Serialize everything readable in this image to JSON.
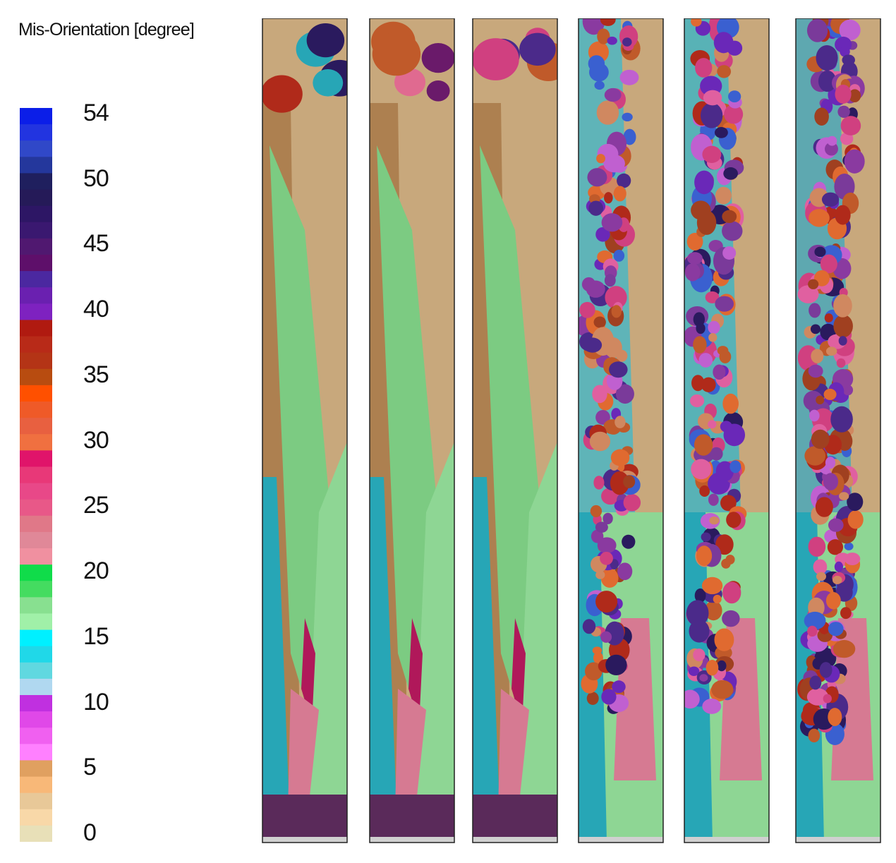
{
  "legend": {
    "title": "Mis-Orientation [degree]",
    "ticks": [
      "54",
      "50",
      "45",
      "40",
      "35",
      "30",
      "25",
      "20",
      "15",
      "10",
      "5",
      "0"
    ],
    "colors": [
      "#0b1ee8",
      "#2234e0",
      "#3048c8",
      "#24379c",
      "#1f1f5e",
      "#251a58",
      "#2d1665",
      "#3a1870",
      "#501870",
      "#5e0f6a",
      "#4b28a0",
      "#6a20b0",
      "#7e22c0",
      "#b01a10",
      "#b82a18",
      "#b43416",
      "#b84c10",
      "#ff5000",
      "#ef5a28",
      "#e86040",
      "#f07040",
      "#e0146a",
      "#e83878",
      "#e84888",
      "#e85888",
      "#e07888",
      "#e08898",
      "#f090a0",
      "#10dc4a",
      "#44dc60",
      "#88e090",
      "#a0f0a8",
      "#00f0ff",
      "#20d8e8",
      "#60d8e0",
      "#b0d8f0",
      "#c030e0",
      "#e048e8",
      "#f060f0",
      "#ff80ff",
      "#e0a060",
      "#f8b878",
      "#e8c898",
      "#f8d8a8",
      "#e8e0b8"
    ]
  },
  "panels": [
    {
      "label": "panel-1",
      "background": "#c8a87c",
      "grains": 8
    },
    {
      "label": "panel-2",
      "background": "#c8a87c",
      "grains": 10
    },
    {
      "label": "panel-3",
      "background": "#c8a87c",
      "grains": 14
    },
    {
      "label": "panel-4",
      "background": "#5fb4b8",
      "grains": 160
    },
    {
      "label": "panel-5",
      "background": "#58b2b6",
      "grains": 190
    },
    {
      "label": "panel-6",
      "background": "#5ea8b0",
      "grains": 260
    }
  ]
}
